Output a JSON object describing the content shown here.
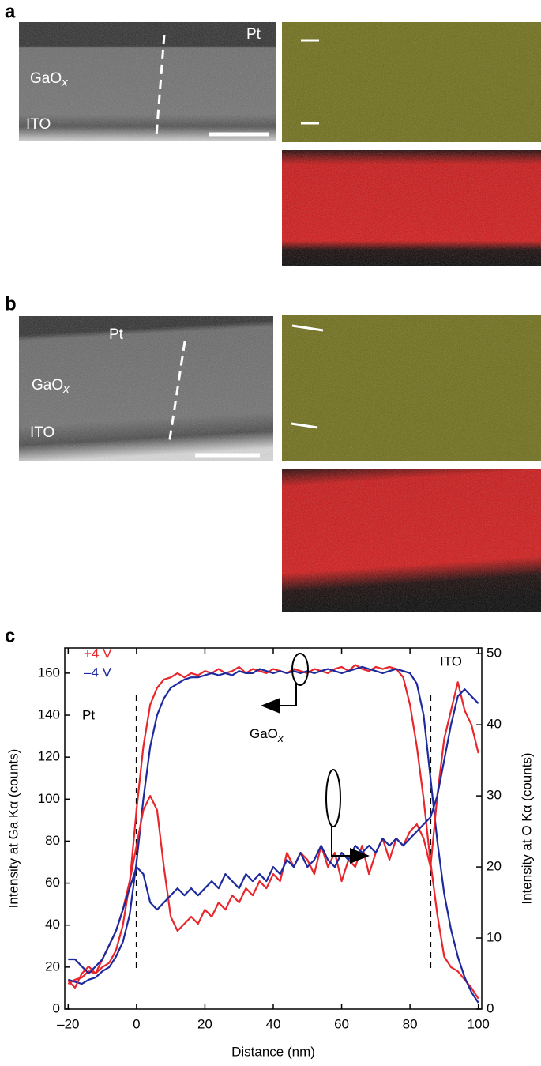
{
  "panels": {
    "a": {
      "label": "a",
      "pt": "Pt",
      "gaox": {
        "text": "GaO",
        "subscript": "x"
      },
      "ito": "ITO"
    },
    "b": {
      "label": "b",
      "pt": "Pt",
      "gaox": {
        "text": "GaO",
        "subscript": "x"
      },
      "ito": "ITO"
    },
    "c": {
      "label": "c"
    }
  },
  "chart_data": {
    "type": "line",
    "x_label": "Distance (nm)",
    "y_label": "Intensity at Ga Kα (counts)",
    "y2_label": "Intensity at O Kα (counts)",
    "annotations": {
      "pt": "Pt",
      "ito": "ITO",
      "gaox": {
        "text": "GaO",
        "subscript": "x"
      }
    },
    "vlines": [
      0,
      86
    ],
    "xlim": [
      -21,
      101
    ],
    "xticks": [
      {
        "value": -20,
        "label": "–20"
      },
      0,
      20,
      40,
      60,
      80,
      100
    ],
    "ylim": [
      0,
      172
    ],
    "yticks": [
      0,
      20,
      40,
      60,
      80,
      100,
      120,
      140,
      160
    ],
    "y2lim": [
      0,
      50.8
    ],
    "y2ticks": [
      0,
      10,
      20,
      30,
      40,
      50
    ],
    "x": [
      -20,
      -18,
      -16,
      -14,
      -12,
      -10,
      -8,
      -6,
      -4,
      -2,
      0,
      2,
      4,
      6,
      8,
      10,
      12,
      14,
      16,
      18,
      20,
      22,
      24,
      26,
      28,
      30,
      32,
      34,
      36,
      38,
      40,
      42,
      44,
      46,
      48,
      50,
      52,
      54,
      56,
      58,
      60,
      62,
      64,
      66,
      68,
      70,
      72,
      74,
      76,
      78,
      80,
      82,
      84,
      86,
      88,
      90,
      92,
      94,
      96,
      98,
      100
    ],
    "series": [
      {
        "name": "+4 V",
        "color": "#e8262b",
        "values": [
          12,
          14,
          15,
          18,
          17,
          20,
          22,
          28,
          40,
          60,
          95,
          125,
          145,
          153,
          157,
          158,
          160,
          158,
          160,
          159,
          161,
          160,
          162,
          160,
          161,
          163,
          160,
          162,
          161,
          160,
          162,
          161,
          160,
          162,
          161,
          160,
          162,
          161,
          160,
          162,
          163,
          161,
          164,
          162,
          161,
          163,
          162,
          163,
          162,
          158,
          145,
          125,
          100,
          70,
          45,
          25,
          20,
          18,
          14,
          10,
          5
        ]
      },
      {
        "name": "–4 V",
        "color": "#1c2a9e",
        "values": [
          14,
          13,
          12,
          14,
          15,
          18,
          20,
          25,
          32,
          45,
          70,
          100,
          125,
          140,
          148,
          153,
          155,
          157,
          158,
          158,
          159,
          160,
          159,
          160,
          159,
          161,
          160,
          160,
          162,
          161,
          160,
          161,
          160,
          161,
          160,
          161,
          160,
          161,
          162,
          161,
          160,
          161,
          162,
          163,
          162,
          161,
          160,
          161,
          162,
          161,
          160,
          155,
          140,
          110,
          80,
          55,
          38,
          25,
          15,
          8,
          3
        ]
      },
      {
        "color": "#e8262b",
        "axis": "y2",
        "values": [
          4,
          3,
          5,
          6,
          5,
          7,
          9,
          11,
          14,
          18,
          23,
          28,
          30,
          28,
          20,
          13,
          11,
          12,
          13,
          12,
          14,
          13,
          15,
          14,
          16,
          15,
          17,
          16,
          18,
          17,
          19,
          18,
          22,
          20,
          22,
          21,
          19,
          23,
          20,
          22,
          18,
          21,
          20,
          23,
          19,
          22,
          24,
          21,
          24,
          23,
          25,
          26,
          24,
          20,
          30,
          38,
          42,
          46,
          42,
          40,
          36
        ]
      },
      {
        "color": "#1c2a9e",
        "axis": "y2",
        "values": [
          7,
          7,
          6,
          5,
          6,
          7,
          9,
          11,
          14,
          17,
          20,
          19,
          15,
          14,
          15,
          16,
          17,
          16,
          17,
          16,
          17,
          18,
          17,
          19,
          18,
          17,
          19,
          18,
          19,
          18,
          20,
          19,
          21,
          20,
          22,
          20,
          21,
          23,
          21,
          20,
          22,
          21,
          23,
          22,
          23,
          22,
          24,
          23,
          24,
          23,
          24,
          25,
          26,
          27,
          30,
          35,
          40,
          44,
          45,
          44,
          43
        ]
      }
    ]
  }
}
